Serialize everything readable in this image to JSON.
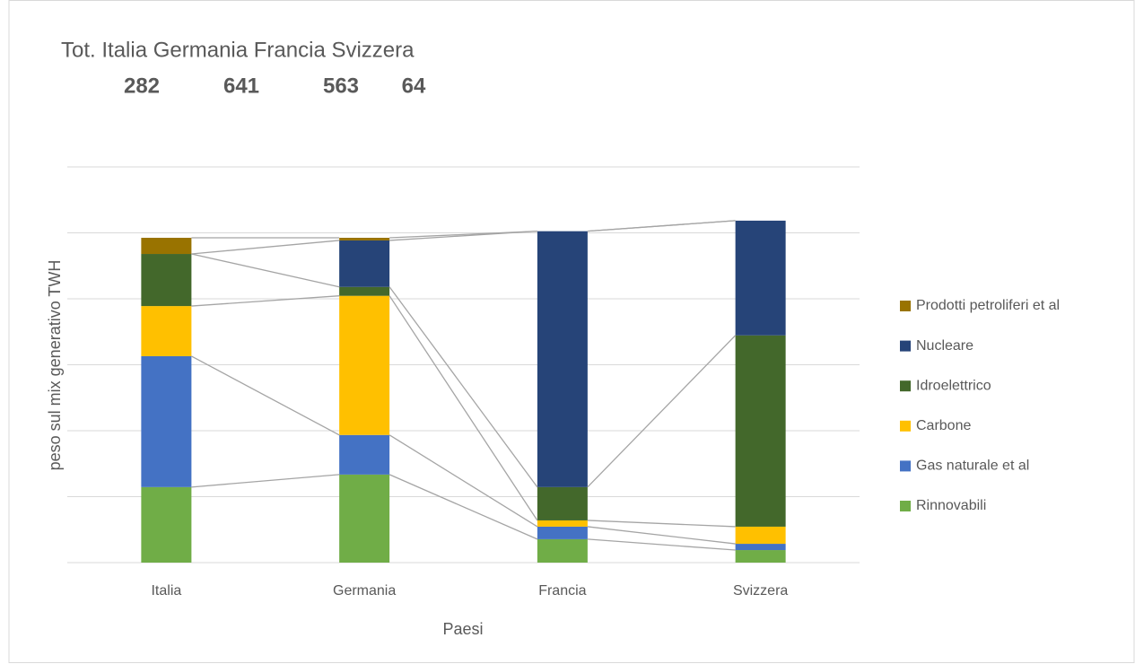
{
  "chart_data": {
    "type": "stacked_bar",
    "annotations": {
      "text": "Tot. Italia Germania Francia Svizzera",
      "values": [
        282,
        641,
        563,
        64
      ]
    },
    "x_label": "Paesi",
    "y_label": "peso sul mix generativo TWH",
    "categories": [
      "Italia",
      "Germania",
      "Francia",
      "Svizzera"
    ],
    "series": [
      {
        "name": "Rinnovabili",
        "color": "#70ad47",
        "values": [
          22.9,
          26.7,
          7.1,
          3.8
        ]
      },
      {
        "name": "Gas naturale et al",
        "color": "#4472c4",
        "values": [
          39.7,
          12.0,
          3.8,
          1.9
        ]
      },
      {
        "name": "Carbone",
        "color": "#ffc000",
        "values": [
          15.2,
          42.2,
          1.9,
          5.2
        ]
      },
      {
        "name": "Idroelettrico",
        "color": "#43682b",
        "values": [
          15.8,
          2.7,
          10.1,
          58.0
        ]
      },
      {
        "name": "Nucleare",
        "color": "#264478",
        "values": [
          0,
          14.1,
          77.6,
          34.8
        ]
      },
      {
        "name": "Prodotti petroliferi et al",
        "color": "#997300",
        "values": [
          4.9,
          0.8,
          0,
          0
        ]
      }
    ],
    "ylim": [
      0,
      120
    ],
    "yticks": [
      0,
      20,
      40,
      60,
      80,
      100,
      120
    ],
    "grid": true,
    "series_lines": true,
    "legend": "right"
  }
}
